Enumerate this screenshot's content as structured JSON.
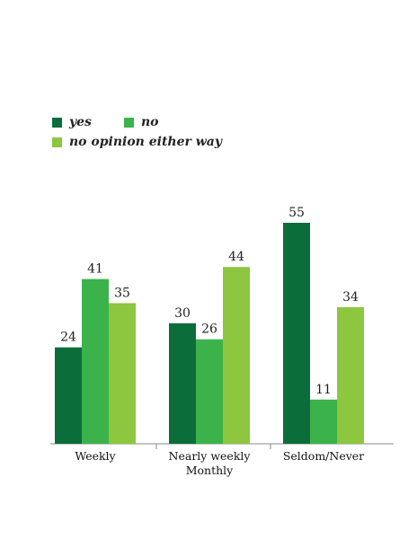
{
  "chart_data": {
    "type": "bar",
    "categories": [
      "Weekly",
      "Nearly weekly\nMonthly",
      "Seldom/Never"
    ],
    "series": [
      {
        "name": "yes",
        "color": "#0b6e3a",
        "values": [
          24,
          30,
          55
        ]
      },
      {
        "name": "no",
        "color": "#3bb34a",
        "values": [
          41,
          26,
          11
        ]
      },
      {
        "name": "no opinion either way",
        "color": "#8dc63f",
        "values": [
          35,
          44,
          34
        ]
      }
    ],
    "ylim": [
      0,
      60
    ],
    "legend_position": "top-left",
    "grid": false,
    "data_labels": true
  }
}
